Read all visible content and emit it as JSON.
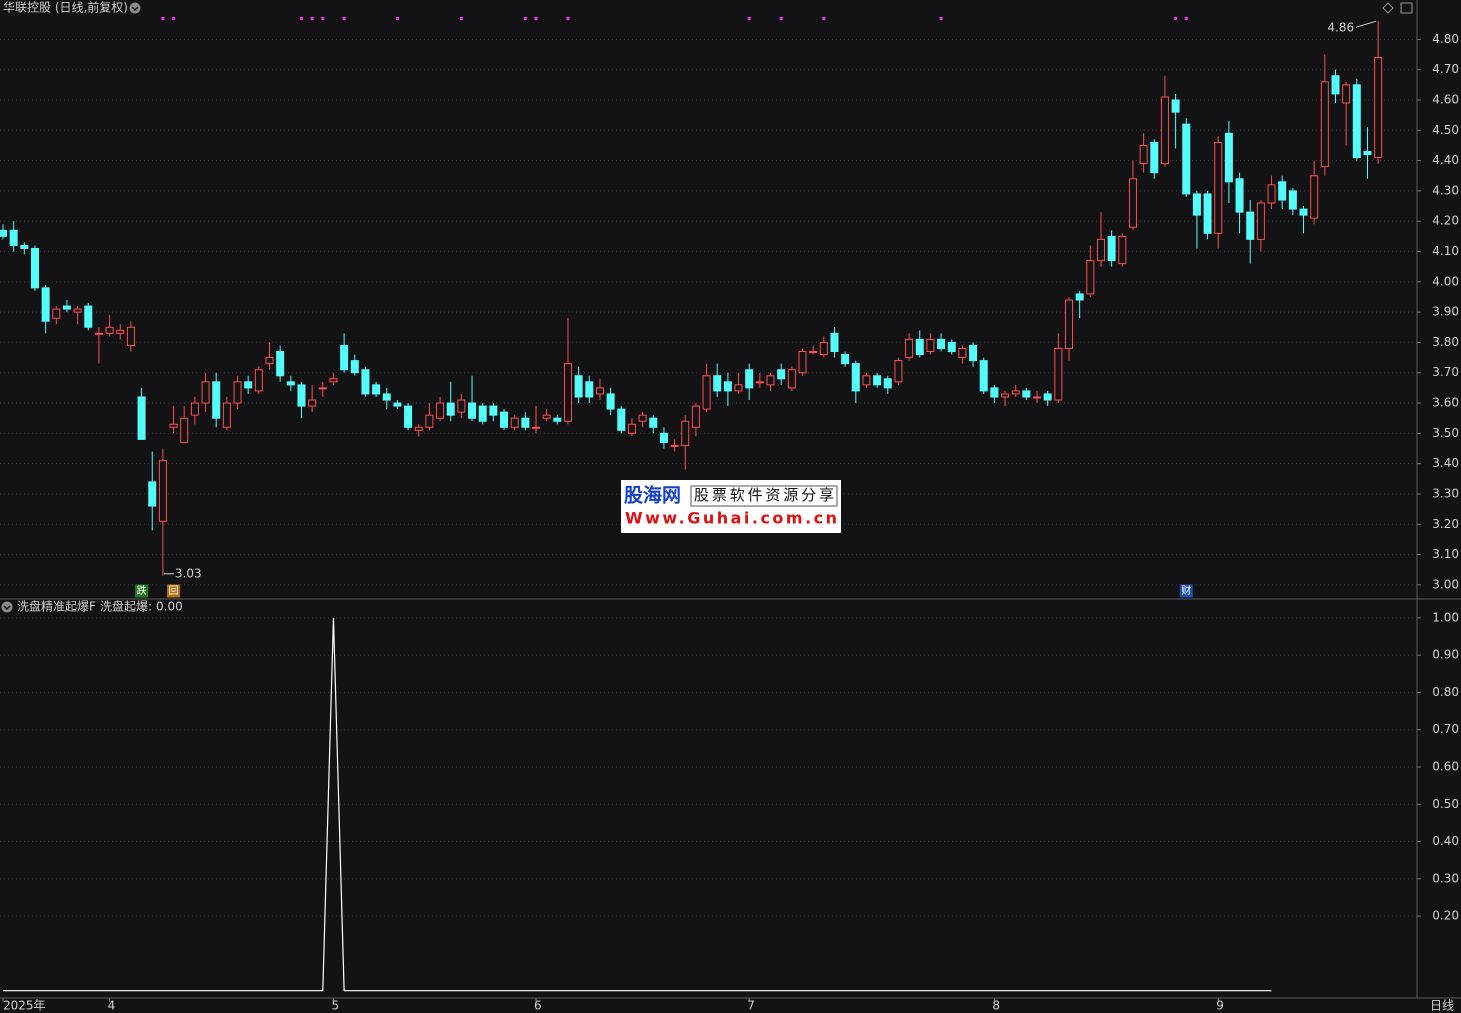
{
  "chart_data": [
    {
      "type": "candlestick",
      "title": "华联控股 (日线,前复权)",
      "period_label": "日线",
      "categories": [
        "2025年",
        null,
        null,
        null,
        null,
        null,
        null,
        null,
        null,
        null,
        "4",
        null,
        null,
        null,
        null,
        null,
        null,
        null,
        null,
        null,
        null,
        null,
        null,
        null,
        null,
        null,
        null,
        null,
        null,
        null,
        null,
        "5",
        null,
        null,
        null,
        null,
        null,
        null,
        null,
        null,
        null,
        null,
        null,
        null,
        null,
        null,
        null,
        null,
        null,
        null,
        "6",
        null,
        null,
        null,
        null,
        null,
        null,
        null,
        null,
        null,
        null,
        null,
        null,
        null,
        null,
        null,
        null,
        null,
        null,
        null,
        "7",
        null,
        null,
        null,
        null,
        null,
        null,
        null,
        null,
        null,
        null,
        null,
        null,
        null,
        null,
        null,
        null,
        null,
        null,
        null,
        null,
        null,
        null,
        "8",
        null,
        null,
        null,
        null,
        null,
        null,
        null,
        null,
        null,
        null,
        null,
        null,
        null,
        null,
        null,
        null,
        null,
        null,
        null,
        null,
        "9",
        null,
        null,
        null,
        null,
        null,
        null,
        null,
        null,
        null,
        null,
        null,
        null,
        null,
        null,
        null
      ],
      "open": [
        4.17,
        4.17,
        4.12,
        4.11,
        3.98,
        3.88,
        3.92,
        3.9,
        3.92,
        3.83,
        3.83,
        3.83,
        3.79,
        3.62,
        3.34,
        3.21,
        3.52,
        3.47,
        3.56,
        3.6,
        3.67,
        3.52,
        3.6,
        3.67,
        3.64,
        3.73,
        3.77,
        3.67,
        3.66,
        3.59,
        3.65,
        3.67,
        3.79,
        3.74,
        3.71,
        3.66,
        3.63,
        3.6,
        3.59,
        3.51,
        3.52,
        3.55,
        3.6,
        3.57,
        3.6,
        3.59,
        3.59,
        3.57,
        3.52,
        3.55,
        3.52,
        3.55,
        3.55,
        3.54,
        3.69,
        3.67,
        3.63,
        3.63,
        3.58,
        3.5,
        3.54,
        3.55,
        3.5,
        3.46,
        3.46,
        3.52,
        3.58,
        3.69,
        3.67,
        3.64,
        3.71,
        3.67,
        3.66,
        3.71,
        3.65,
        3.7,
        3.77,
        3.76,
        3.83,
        3.76,
        3.73,
        3.66,
        3.69,
        3.68,
        3.67,
        3.75,
        3.81,
        3.77,
        3.81,
        3.8,
        3.75,
        3.79,
        3.74,
        3.65,
        3.62,
        3.63,
        3.64,
        3.62,
        3.63,
        3.61,
        3.78,
        3.96,
        3.96,
        4.07,
        4.15,
        4.06,
        4.18,
        4.39,
        4.46,
        4.39,
        4.6,
        4.52,
        4.29,
        4.29,
        4.16,
        4.49,
        4.34,
        4.23,
        4.14,
        4.26,
        4.33,
        4.3,
        4.24,
        4.21,
        4.38,
        4.68,
        4.59,
        4.65,
        4.43,
        4.41
      ],
      "high": [
        4.19,
        4.2,
        4.13,
        4.12,
        3.99,
        3.92,
        3.94,
        3.92,
        3.93,
        3.85,
        3.89,
        3.86,
        3.87,
        3.65,
        3.44,
        3.45,
        3.59,
        3.59,
        3.62,
        3.7,
        3.7,
        3.62,
        3.69,
        3.69,
        3.72,
        3.8,
        3.79,
        3.69,
        3.67,
        3.66,
        3.67,
        3.7,
        3.83,
        3.76,
        3.72,
        3.67,
        3.65,
        3.61,
        3.6,
        3.53,
        3.6,
        3.62,
        3.67,
        3.63,
        3.69,
        3.6,
        3.6,
        3.58,
        3.56,
        3.57,
        3.59,
        3.58,
        3.56,
        3.88,
        3.72,
        3.69,
        3.68,
        3.65,
        3.59,
        3.55,
        3.57,
        3.56,
        3.52,
        3.48,
        3.56,
        3.6,
        3.73,
        3.73,
        3.7,
        3.7,
        3.73,
        3.7,
        3.7,
        3.73,
        3.72,
        3.78,
        3.79,
        3.82,
        3.85,
        3.77,
        3.74,
        3.7,
        3.7,
        3.69,
        3.75,
        3.83,
        3.84,
        3.83,
        3.83,
        3.81,
        3.79,
        3.8,
        3.75,
        3.66,
        3.64,
        3.66,
        3.65,
        3.64,
        3.64,
        3.83,
        3.95,
        3.97,
        4.12,
        4.23,
        4.17,
        4.16,
        4.4,
        4.49,
        4.47,
        4.68,
        4.62,
        4.54,
        4.3,
        4.3,
        4.48,
        4.53,
        4.36,
        4.27,
        4.27,
        4.35,
        4.35,
        4.31,
        4.25,
        4.4,
        4.75,
        4.7,
        4.66,
        4.67,
        4.51,
        4.86
      ],
      "low": [
        4.14,
        4.1,
        4.09,
        3.97,
        3.83,
        3.86,
        3.9,
        3.86,
        3.84,
        3.73,
        3.82,
        3.81,
        3.77,
        3.48,
        3.18,
        3.03,
        3.5,
        3.47,
        3.53,
        3.57,
        3.52,
        3.51,
        3.58,
        3.63,
        3.63,
        3.71,
        3.67,
        3.64,
        3.55,
        3.57,
        3.62,
        3.66,
        3.7,
        3.69,
        3.62,
        3.62,
        3.58,
        3.58,
        3.51,
        3.49,
        3.51,
        3.54,
        3.54,
        3.55,
        3.54,
        3.53,
        3.54,
        3.51,
        3.51,
        3.51,
        3.5,
        3.54,
        3.53,
        3.53,
        3.6,
        3.6,
        3.61,
        3.56,
        3.5,
        3.49,
        3.52,
        3.5,
        3.45,
        3.44,
        3.38,
        3.49,
        3.57,
        3.62,
        3.59,
        3.63,
        3.61,
        3.65,
        3.64,
        3.66,
        3.64,
        3.69,
        3.76,
        3.75,
        3.75,
        3.72,
        3.6,
        3.65,
        3.65,
        3.63,
        3.66,
        3.74,
        3.75,
        3.76,
        3.77,
        3.76,
        3.73,
        3.72,
        3.63,
        3.6,
        3.59,
        3.62,
        3.61,
        3.6,
        3.59,
        3.6,
        3.74,
        3.88,
        3.95,
        4.05,
        4.05,
        4.05,
        4.17,
        4.36,
        4.34,
        4.38,
        4.44,
        4.28,
        4.11,
        4.14,
        4.11,
        4.26,
        4.16,
        4.06,
        4.1,
        4.24,
        4.24,
        4.22,
        4.16,
        4.19,
        4.35,
        4.59,
        4.45,
        4.4,
        4.34,
        4.39
      ],
      "close": [
        4.15,
        4.12,
        4.11,
        3.98,
        3.87,
        3.91,
        3.91,
        3.91,
        3.85,
        3.83,
        3.85,
        3.84,
        3.85,
        3.48,
        3.26,
        3.41,
        3.53,
        3.55,
        3.6,
        3.67,
        3.55,
        3.6,
        3.67,
        3.65,
        3.71,
        3.75,
        3.69,
        3.66,
        3.59,
        3.61,
        3.65,
        3.68,
        3.71,
        3.7,
        3.63,
        3.63,
        3.61,
        3.59,
        3.52,
        3.52,
        3.56,
        3.6,
        3.56,
        3.61,
        3.55,
        3.54,
        3.56,
        3.52,
        3.55,
        3.52,
        3.52,
        3.56,
        3.54,
        3.73,
        3.62,
        3.62,
        3.65,
        3.58,
        3.51,
        3.53,
        3.56,
        3.52,
        3.47,
        3.46,
        3.54,
        3.59,
        3.69,
        3.64,
        3.64,
        3.66,
        3.65,
        3.67,
        3.69,
        3.68,
        3.71,
        3.77,
        3.77,
        3.8,
        3.77,
        3.73,
        3.64,
        3.69,
        3.66,
        3.65,
        3.74,
        3.81,
        3.76,
        3.81,
        3.78,
        3.77,
        3.78,
        3.74,
        3.64,
        3.62,
        3.63,
        3.64,
        3.62,
        3.62,
        3.61,
        3.78,
        3.94,
        3.94,
        4.07,
        4.14,
        4.07,
        4.15,
        4.34,
        4.45,
        4.36,
        4.61,
        4.56,
        4.29,
        4.22,
        4.16,
        4.46,
        4.33,
        4.23,
        4.14,
        4.26,
        4.32,
        4.27,
        4.24,
        4.22,
        4.35,
        4.66,
        4.62,
        4.65,
        4.41,
        4.42,
        4.74
      ],
      "up_color": "#ff4d4d",
      "down_color": "#54fcfc",
      "ylim": [
        2.96,
        4.92
      ],
      "yticks": [
        {
          "value": 3.0,
          "label": "3.00"
        },
        {
          "value": 3.1,
          "label": "3.10"
        },
        {
          "value": 3.2,
          "label": "3.20"
        },
        {
          "value": 3.3,
          "label": "3.30"
        },
        {
          "value": 3.4,
          "label": "3.40"
        },
        {
          "value": 3.5,
          "label": "3.50"
        },
        {
          "value": 3.6,
          "label": "3.60"
        },
        {
          "value": 3.7,
          "label": "3.70"
        },
        {
          "value": 3.8,
          "label": "3.80"
        },
        {
          "value": 3.9,
          "label": "3.90"
        },
        {
          "value": 4.0,
          "label": "4.00"
        },
        {
          "value": 4.1,
          "label": "4.10"
        },
        {
          "value": 4.2,
          "label": "4.20"
        },
        {
          "value": 4.3,
          "label": "4.30"
        },
        {
          "value": 4.4,
          "label": "4.40"
        },
        {
          "value": 4.5,
          "label": "4.50"
        },
        {
          "value": 4.6,
          "label": "4.60"
        },
        {
          "value": 4.7,
          "label": "4.70"
        },
        {
          "value": 4.8,
          "label": "4.80"
        }
      ],
      "grid": true,
      "top_signals": {
        "color": "#ff2bff",
        "indices": [
          15,
          16,
          28,
          29,
          30,
          32,
          37,
          43,
          49,
          50,
          53,
          70,
          73,
          77,
          88,
          110,
          111
        ]
      },
      "markers": [
        {
          "index": 13,
          "label": "跌",
          "color": "#1f7a1f"
        },
        {
          "index": 16,
          "label": "回",
          "color": "#b8700f"
        },
        {
          "index": 111,
          "label": "财",
          "color": "#1f4fa8"
        }
      ]
    },
    {
      "type": "line",
      "title": "洗盘精准起爆F",
      "series": [
        {
          "name": "洗盘起爆:",
          "current_label": "0.00",
          "color": "#ffffff",
          "values": [
            0,
            0,
            0,
            0,
            0,
            0,
            0,
            0,
            0,
            0,
            0,
            0,
            0,
            0,
            0,
            0,
            0,
            0,
            0,
            0,
            0,
            0,
            0,
            0,
            0,
            0,
            0,
            0,
            0,
            0,
            0,
            1,
            0,
            0,
            0,
            0,
            0,
            0,
            0,
            0,
            0,
            0,
            0,
            0,
            0,
            0,
            0,
            0,
            0,
            0,
            0,
            0,
            0,
            0,
            0,
            0,
            0,
            0,
            0,
            0,
            0,
            0,
            0,
            0,
            0,
            0,
            0,
            0,
            0,
            0,
            0,
            0,
            0,
            0,
            0,
            0,
            0,
            0,
            0,
            0,
            0,
            0,
            0,
            0,
            0,
            0,
            0,
            0,
            0,
            0,
            0,
            0,
            0,
            0,
            0,
            0,
            0,
            0,
            0,
            0,
            0,
            0,
            0,
            0,
            0,
            0,
            0,
            0,
            0,
            0,
            0,
            0,
            0,
            0,
            0,
            0,
            0,
            0,
            0,
            0
          ]
        }
      ],
      "ylim": [
        -0.017,
        1.048
      ],
      "yticks": [
        {
          "value": 0.2,
          "label": "0.20"
        },
        {
          "value": 0.3,
          "label": "0.30"
        },
        {
          "value": 0.4,
          "label": "0.40"
        },
        {
          "value": 0.5,
          "label": "0.50"
        },
        {
          "value": 0.6,
          "label": "0.60"
        },
        {
          "value": 0.7,
          "label": "0.70"
        },
        {
          "value": 0.8,
          "label": "0.80"
        },
        {
          "value": 0.9,
          "label": "0.90"
        },
        {
          "value": 1.0,
          "label": "1.00"
        }
      ],
      "grid": true
    }
  ],
  "watermark": {
    "brand": "股海网",
    "slogan": "股票软件资源分享",
    "url": "Www.Guhai.com.cn"
  }
}
